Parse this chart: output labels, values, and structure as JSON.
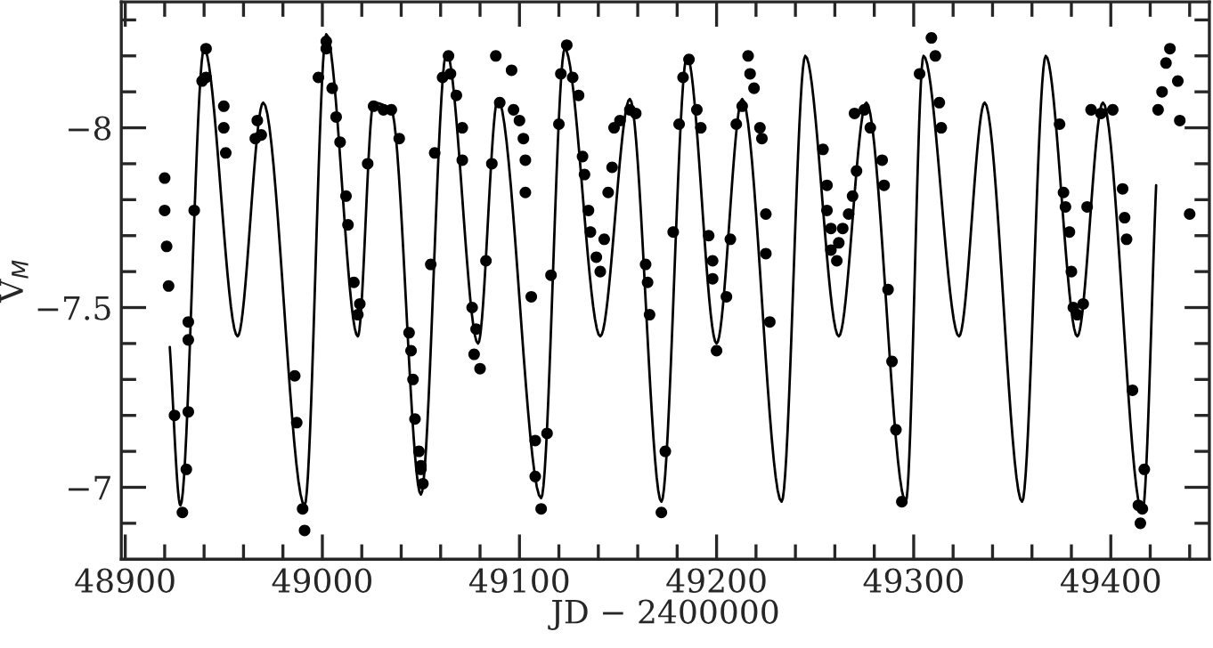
{
  "chart_data": {
    "type": "scatter",
    "xlabel": "JD − 2400000",
    "ylabel": "V$_{M}$",
    "xlim": [
      48898,
      49450
    ],
    "ylim": [
      -6.8,
      -8.35
    ],
    "xticks": [
      48900,
      {
        "value": 48920,
        "label": null
      },
      {
        "value": 48940,
        "label": null
      },
      {
        "value": 48960,
        "label": null
      },
      {
        "value": 48980,
        "label": null
      },
      49000,
      {
        "value": 49020,
        "label": null
      },
      {
        "value": 49040,
        "label": null
      },
      {
        "value": 49060,
        "label": null
      },
      {
        "value": 49080,
        "label": null
      },
      49100,
      {
        "value": 49120,
        "label": null
      },
      {
        "value": 49140,
        "label": null
      },
      {
        "value": 49160,
        "label": null
      },
      {
        "value": 49180,
        "label": null
      },
      49200,
      {
        "value": 49220,
        "label": null
      },
      {
        "value": 49240,
        "label": null
      },
      {
        "value": 49260,
        "label": null
      },
      {
        "value": 49280,
        "label": null
      },
      49300,
      {
        "value": 49320,
        "label": null
      },
      {
        "value": 49340,
        "label": null
      },
      {
        "value": 49360,
        "label": null
      },
      {
        "value": 49380,
        "label": null
      },
      49400,
      {
        "value": 49420,
        "label": null
      },
      {
        "value": 49440,
        "label": null
      }
    ],
    "yticks": [
      {
        "value": -8.3,
        "label": null
      },
      {
        "value": -8.2,
        "label": null
      },
      {
        "value": -8.1,
        "label": null
      },
      {
        "value": -8,
        "label": "−8"
      },
      {
        "value": -7.9,
        "label": null
      },
      {
        "value": -7.8,
        "label": null
      },
      {
        "value": -7.7,
        "label": null
      },
      {
        "value": -7.6,
        "label": null
      },
      {
        "value": -7.5,
        "label": "−7.5"
      },
      {
        "value": -7.4,
        "label": null
      },
      {
        "value": -7.3,
        "label": null
      },
      {
        "value": -7.2,
        "label": null
      },
      {
        "value": -7.1,
        "label": null
      },
      {
        "value": -7,
        "label": "−7"
      },
      {
        "value": -6.9,
        "label": null
      }
    ],
    "grid": false,
    "legend": false,
    "series": [
      {
        "type": "line",
        "color": "#000000",
        "marker": "none",
        "line_style": "solid",
        "x": [
          48922.6,
          48928,
          48940,
          48957,
          48970,
          48991,
          49002,
          49018,
          49026,
          49035,
          49050,
          49063,
          49079,
          49089,
          49111,
          49123,
          49141,
          49156,
          49172,
          49185,
          49200,
          49213,
          49233,
          49245,
          49262,
          49276,
          49296,
          49305,
          49323,
          49336,
          49355,
          49367,
          49383,
          49396,
          49416,
          49423
        ],
        "values": [
          -7.39,
          -6.95,
          -8.22,
          -7.42,
          -8.07,
          -6.95,
          -8.26,
          -7.42,
          -8.07,
          -8.05,
          -6.98,
          -8.21,
          -7.4,
          -8.08,
          -6.97,
          -8.22,
          -7.42,
          -8.08,
          -6.96,
          -8.2,
          -7.4,
          -8.08,
          -6.96,
          -8.2,
          -7.42,
          -8.07,
          -6.96,
          -8.2,
          -7.42,
          -8.07,
          -6.96,
          -8.2,
          -7.42,
          -8.07,
          -6.93,
          -7.84
        ]
      },
      {
        "color": "#000000",
        "marker": "circle",
        "x": [
          48920,
          48920,
          48921,
          48922,
          48925,
          48932,
          48931,
          48929,
          48932,
          48932,
          48935,
          48939,
          48941,
          48941,
          48950,
          48950,
          48951,
          48966,
          48967,
          48969,
          48986,
          48987,
          48990,
          48991,
          48998,
          49002,
          49002,
          49005,
          49007,
          49009,
          49012,
          49013,
          49016,
          49019,
          49018,
          49023,
          49026,
          49031,
          49035,
          49039,
          49044,
          49045,
          49046,
          49047,
          49049,
          49050,
          49050,
          49051,
          49055,
          49057,
          49061,
          49064,
          49065,
          49068,
          49071,
          49071,
          49076,
          49078,
          49077,
          49080,
          49083,
          49086,
          49088,
          49096,
          49090,
          49097,
          49100,
          49102,
          49103,
          49103,
          49106,
          49108,
          49108,
          49111,
          49114,
          49116,
          49120,
          49121,
          49124,
          49127,
          49130,
          49132,
          49133,
          49135,
          49136,
          49139,
          49141,
          49143,
          49145,
          49147,
          49148,
          49151,
          49156,
          49159,
          49164,
          49165,
          49166,
          49172,
          49174,
          49178,
          49181,
          49183,
          49186,
          49190,
          49192,
          49196,
          49198,
          49198,
          49200,
          49205,
          49207,
          49210,
          49213,
          49216,
          49217,
          49219,
          49222,
          49223,
          49225,
          49225,
          49227,
          49254,
          49256,
          49256,
          49258,
          49258,
          49261,
          49262,
          49264,
          49267,
          49269,
          49271,
          49270,
          49275,
          49278,
          49284,
          49285,
          49287,
          49289,
          49291,
          49294,
          49303,
          49309,
          49311,
          49313,
          49314,
          49374,
          49376,
          49377,
          49379,
          49380,
          49381,
          49383,
          49386,
          49388,
          49390,
          49395,
          49401,
          49406,
          49407,
          49408,
          49411,
          49414,
          49415,
          49417,
          49416,
          49424,
          49426,
          49428,
          49430,
          49434,
          49435,
          49440
        ],
        "values": [
          -7.86,
          -7.77,
          -7.67,
          -7.56,
          -7.2,
          -7.21,
          -7.05,
          -6.93,
          -7.46,
          -7.41,
          -7.77,
          -8.13,
          -8.22,
          -8.14,
          -8.06,
          -8.0,
          -7.93,
          -7.97,
          -8.02,
          -7.98,
          -7.31,
          -7.18,
          -6.94,
          -6.88,
          -8.14,
          -8.24,
          -8.22,
          -8.11,
          -8.03,
          -7.96,
          -7.81,
          -7.73,
          -7.57,
          -7.51,
          -7.48,
          -7.9,
          -8.06,
          -8.05,
          -8.05,
          -7.97,
          -7.43,
          -7.38,
          -7.3,
          -7.19,
          -7.1,
          -7.05,
          -7.06,
          -7.01,
          -7.62,
          -7.93,
          -8.14,
          -8.2,
          -8.15,
          -8.09,
          -8.0,
          -7.91,
          -7.5,
          -7.44,
          -7.37,
          -7.33,
          -7.63,
          -7.9,
          -8.2,
          -8.16,
          -8.07,
          -8.05,
          -8.02,
          -7.97,
          -7.91,
          -7.82,
          -7.53,
          -7.13,
          -7.03,
          -6.94,
          -7.15,
          -7.59,
          -8.01,
          -8.15,
          -8.23,
          -8.14,
          -8.09,
          -7.92,
          -7.87,
          -7.77,
          -7.71,
          -7.64,
          -7.6,
          -7.69,
          -7.82,
          -7.89,
          -8.0,
          -8.02,
          -8.05,
          -8.04,
          -7.62,
          -7.57,
          -7.48,
          -6.93,
          -7.1,
          -7.71,
          -8.01,
          -8.14,
          -8.19,
          -8.05,
          -8.0,
          -7.7,
          -7.63,
          -7.58,
          -7.38,
          -7.53,
          -7.69,
          -8.01,
          -8.06,
          -8.2,
          -8.15,
          -8.11,
          -8.0,
          -7.97,
          -7.76,
          -7.65,
          -7.46,
          -7.94,
          -7.84,
          -7.77,
          -7.72,
          -7.66,
          -7.63,
          -7.68,
          -7.72,
          -7.76,
          -7.81,
          -7.88,
          -8.04,
          -8.05,
          -8.0,
          -7.91,
          -7.84,
          -7.55,
          -7.35,
          -7.16,
          -6.96,
          -8.15,
          -8.25,
          -8.2,
          -8.07,
          -8.0,
          -8.01,
          -7.82,
          -7.78,
          -7.71,
          -7.6,
          -7.5,
          -7.48,
          -7.51,
          -7.78,
          -8.05,
          -8.04,
          -8.05,
          -7.83,
          -7.75,
          -7.69,
          -7.27,
          -6.95,
          -6.9,
          -7.05,
          -6.94,
          -8.05,
          -8.1,
          -8.18,
          -8.22,
          -8.13,
          -8.02,
          -7.76
        ]
      }
    ]
  }
}
